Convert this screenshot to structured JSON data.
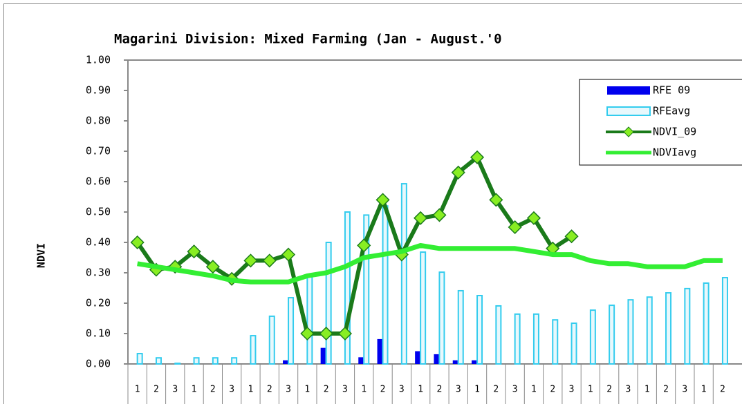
{
  "chart_data": {
    "type": "bar-line",
    "title": "Magarini Division: Mixed Farming (Jan - August.'0",
    "y_label": "NDVI",
    "categories": [
      "1",
      "2",
      "3",
      "1",
      "2",
      "3",
      "1",
      "2",
      "3",
      "1",
      "2",
      "3",
      "1",
      "2",
      "3",
      "1",
      "2",
      "3",
      "1",
      "2",
      "3",
      "1",
      "2",
      "3",
      "1",
      "2",
      "3",
      "1",
      "2",
      "3",
      "1",
      "2"
    ],
    "series": [
      {
        "name": "RFE 09",
        "kind": "bar",
        "color": "#0000ee",
        "values": [
          0,
          0,
          0,
          0,
          0,
          0,
          0,
          0,
          0.012,
          0,
          0.053,
          0,
          0.022,
          0.082,
          0,
          0.042,
          0.032,
          0.012,
          0.012,
          0,
          0,
          0,
          0,
          0,
          null,
          null,
          null,
          null,
          null,
          null,
          null,
          null
        ]
      },
      {
        "name": "RFEavg",
        "kind": "bar",
        "color": "#33ccee",
        "values": [
          0.034,
          0.02,
          0.002,
          0.02,
          0.02,
          0.02,
          0.093,
          0.157,
          0.218,
          0.29,
          0.4,
          0.5,
          0.49,
          0.52,
          0.593,
          0.368,
          0.302,
          0.241,
          0.225,
          0.191,
          0.164,
          0.164,
          0.145,
          0.134,
          0.177,
          0.193,
          0.211,
          0.22,
          0.234,
          0.248,
          0.266,
          0.284
        ]
      },
      {
        "name": "NDVI_09",
        "kind": "line-marker",
        "color": "#1a7a1a",
        "values": [
          0.4,
          0.31,
          0.32,
          0.37,
          0.32,
          0.28,
          0.34,
          0.34,
          0.36,
          0.1,
          0.1,
          0.1,
          0.39,
          0.54,
          0.36,
          0.48,
          0.49,
          0.63,
          0.68,
          0.54,
          0.45,
          0.48,
          0.38,
          0.42,
          null,
          null,
          null,
          null,
          null,
          null,
          null,
          null
        ]
      },
      {
        "name": "NDVIavg",
        "kind": "line",
        "color": "#33ee33",
        "values": [
          0.33,
          0.32,
          0.31,
          0.3,
          0.29,
          0.275,
          0.27,
          0.27,
          0.27,
          0.29,
          0.3,
          0.32,
          0.35,
          0.36,
          0.37,
          0.39,
          0.38,
          0.38,
          0.38,
          0.38,
          0.38,
          0.37,
          0.36,
          0.36,
          0.34,
          0.33,
          0.33,
          0.32,
          0.32,
          0.32,
          0.34,
          0.34
        ]
      }
    ],
    "ylim": [
      0,
      1
    ],
    "yticks": [
      {
        "value": 0,
        "label": "0.00"
      },
      {
        "value": 0.1,
        "label": "0.10"
      },
      {
        "value": 0.2,
        "label": "0.20"
      },
      {
        "value": 0.3,
        "label": "0.30"
      },
      {
        "value": 0.4,
        "label": "0.40"
      },
      {
        "value": 0.5,
        "label": "0.50"
      },
      {
        "value": 0.6,
        "label": "0.60"
      },
      {
        "value": 0.7,
        "label": "0.70"
      },
      {
        "value": 0.8,
        "label": "0.80"
      },
      {
        "value": 0.9,
        "label": "0.90"
      },
      {
        "value": 1,
        "label": "1.00"
      }
    ],
    "legend": "top-right"
  }
}
